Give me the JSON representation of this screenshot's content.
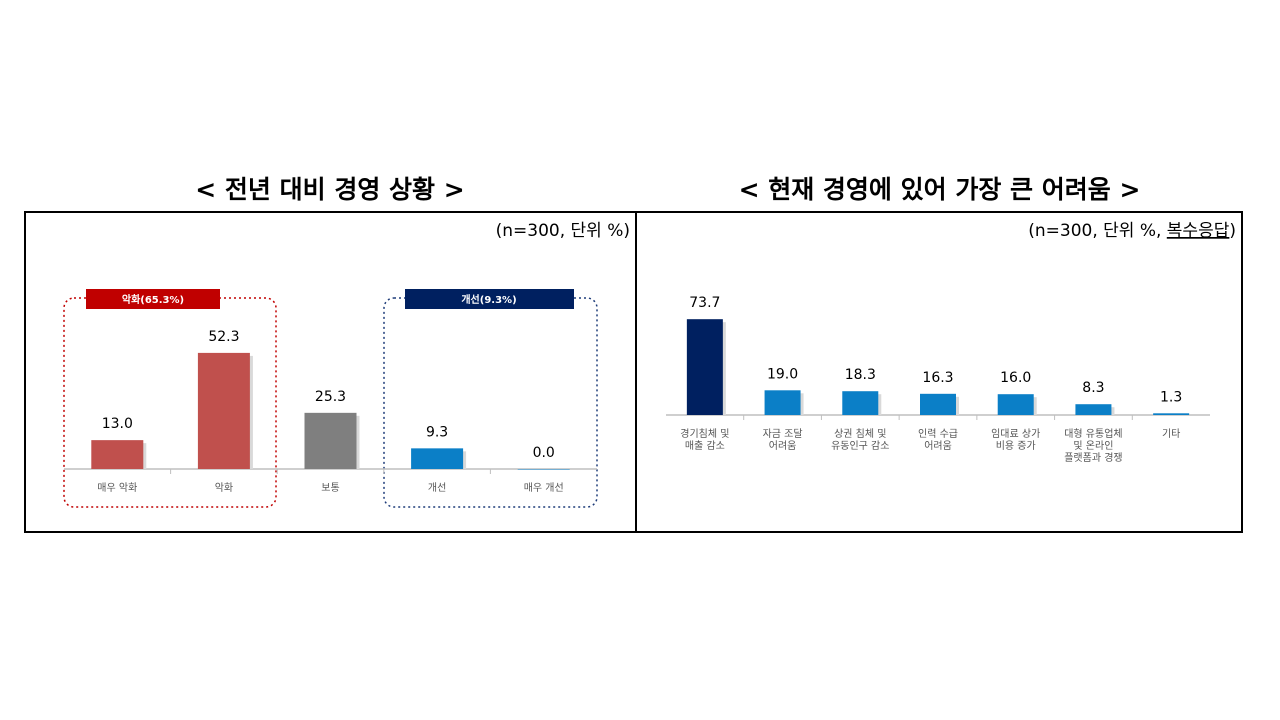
{
  "titles": {
    "left": "< 전년 대비 경영 상황 >",
    "right": "< 현재 경영에 있어 가장 큰 어려움 >"
  },
  "units": {
    "left": "(n=300, 단위 %)",
    "right_prefix": "(n=300, 단위 %, ",
    "right_underlined": "복수응답",
    "right_suffix": ")"
  },
  "colors": {
    "red": "#c0504d",
    "gray": "#7f7f7f",
    "blue": "#0b7fc7",
    "navy": "#002060",
    "dark_red": "#c00000",
    "group_blue": "#1f3d7a",
    "axis": "#bfbfbf"
  },
  "groups": [
    {
      "label": "악화(65.3%)",
      "color": "dark_red"
    },
    {
      "label": "개선(9.3%)",
      "color": "navy"
    }
  ],
  "chart_data": [
    {
      "type": "bar",
      "title": "< 전년 대비 경영 상황 >",
      "categories": [
        "매우 악화",
        "악화",
        "보통",
        "개선",
        "매우 개선"
      ],
      "values": [
        13.0,
        52.3,
        25.3,
        9.3,
        0.0
      ],
      "value_labels": [
        "13.0",
        "52.3",
        "25.3",
        "9.3",
        "0.0"
      ],
      "colors": [
        "red",
        "red",
        "gray",
        "blue",
        "blue"
      ],
      "unit": "(n=300, 단위 %)"
    },
    {
      "type": "bar",
      "title": "< 현재 경영에 있어 가장 큰 어려움 >",
      "categories": [
        [
          "경기침체 및",
          "매출 감소"
        ],
        [
          "자금 조달",
          "어려움"
        ],
        [
          "상권 침체 및",
          "유동인구 감소"
        ],
        [
          "인력 수급",
          "어려움"
        ],
        [
          "임대료 상가",
          "비용 증가"
        ],
        [
          "대형 유통업체",
          "및 온라인",
          "플랫폼과 경쟁"
        ],
        [
          "기타"
        ]
      ],
      "values": [
        73.7,
        19.0,
        18.3,
        16.3,
        16.0,
        8.3,
        1.3
      ],
      "value_labels": [
        "73.7",
        "19.0",
        "18.3",
        "16.3",
        "16.0",
        "8.3",
        "1.3"
      ],
      "colors": [
        "navy",
        "blue",
        "blue",
        "blue",
        "blue",
        "blue",
        "blue"
      ],
      "unit": "(n=300, 단위 %, 복수응답)"
    }
  ]
}
